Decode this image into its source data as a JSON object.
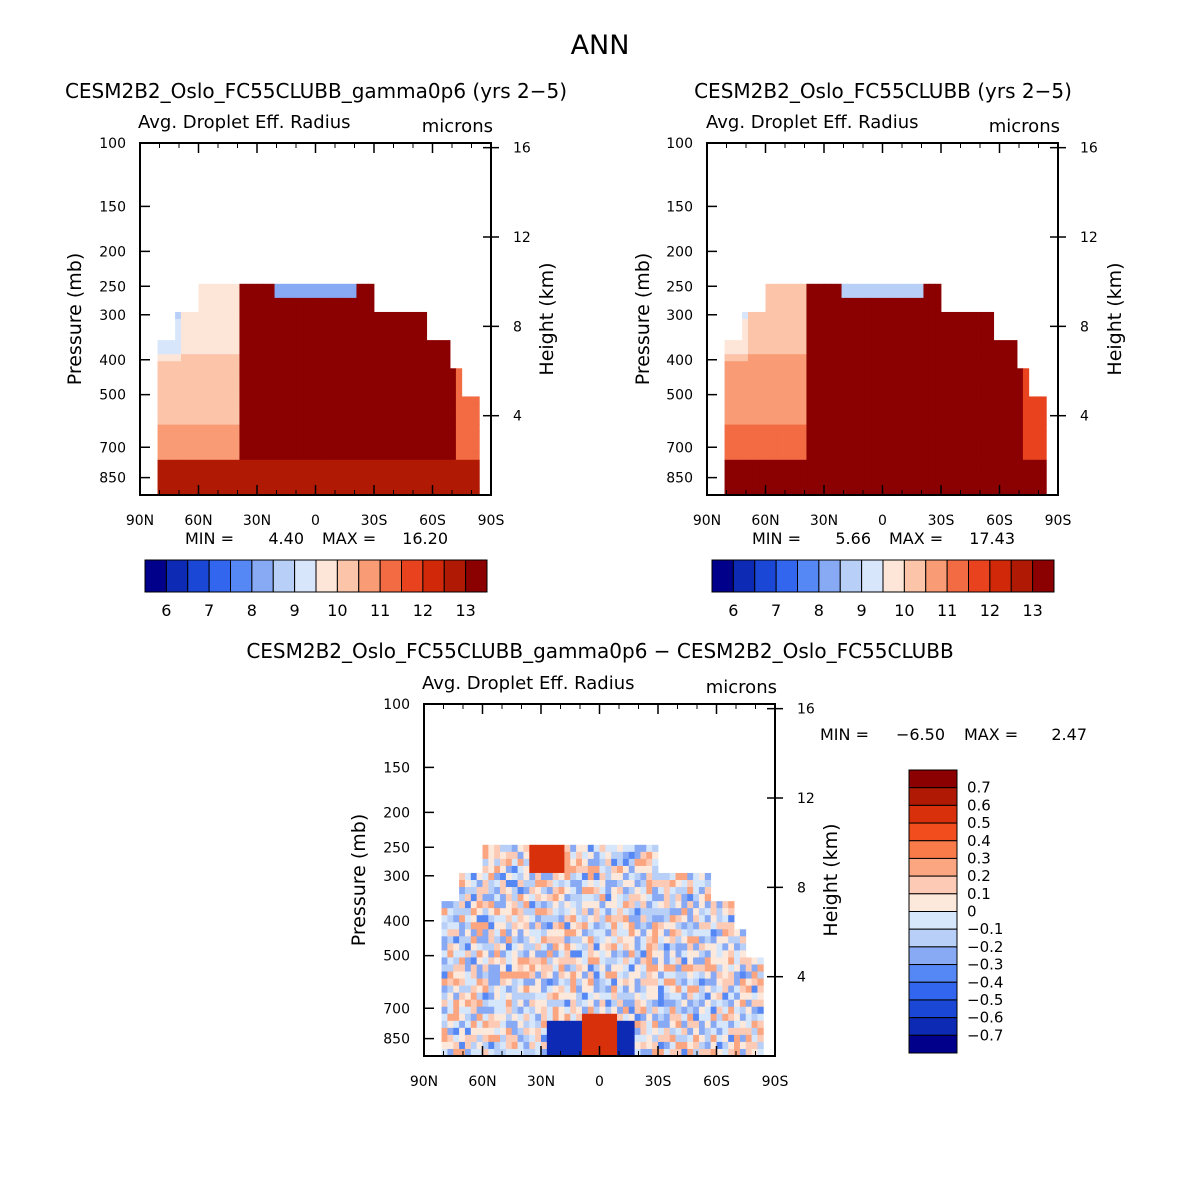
{
  "page_title": "ANN",
  "chart_data": [
    {
      "type": "heatmap",
      "title": "CESM2B2_Oslo_FC55CLUBB_gamma0p6 (yrs 2−5)",
      "subtitle": "Avg. Droplet Eff. Radius",
      "units": "microns",
      "ylabel": "Pressure (mb)",
      "ylabel_right": "Height (km)",
      "x_ticks": [
        "90N",
        "60N",
        "30N",
        "0",
        "30S",
        "60S",
        "90S"
      ],
      "y_ticks": [
        "100",
        "150",
        "200",
        "250",
        "300",
        "400",
        "500",
        "700",
        "850"
      ],
      "y_right_ticks": [
        "16",
        "12",
        "8",
        "4"
      ],
      "min_label": "MIN =",
      "min_value": "4.40",
      "max_label": "MAX =",
      "max_value": "16.20",
      "colorbar_labels": [
        "6",
        "7",
        "8",
        "9",
        "10",
        "11",
        "12",
        "13"
      ]
    },
    {
      "type": "heatmap",
      "title": "CESM2B2_Oslo_FC55CLUBB (yrs 2−5)",
      "subtitle": "Avg. Droplet Eff. Radius",
      "units": "microns",
      "ylabel": "Pressure (mb)",
      "ylabel_right": "Height (km)",
      "x_ticks": [
        "90N",
        "60N",
        "30N",
        "0",
        "30S",
        "60S",
        "90S"
      ],
      "y_ticks": [
        "100",
        "150",
        "200",
        "250",
        "300",
        "400",
        "500",
        "700",
        "850"
      ],
      "y_right_ticks": [
        "16",
        "12",
        "8",
        "4"
      ],
      "min_label": "MIN =",
      "min_value": "5.66",
      "max_label": "MAX =",
      "max_value": "17.43",
      "colorbar_labels": [
        "6",
        "7",
        "8",
        "9",
        "10",
        "11",
        "12",
        "13"
      ]
    },
    {
      "type": "heatmap",
      "title": "CESM2B2_Oslo_FC55CLUBB_gamma0p6 − CESM2B2_Oslo_FC55CLUBB",
      "subtitle": "Avg. Droplet Eff. Radius",
      "units": "microns",
      "ylabel": "Pressure (mb)",
      "ylabel_right": "Height (km)",
      "x_ticks": [
        "90N",
        "60N",
        "30N",
        "0",
        "30S",
        "60S",
        "90S"
      ],
      "y_ticks": [
        "100",
        "150",
        "200",
        "250",
        "300",
        "400",
        "500",
        "700",
        "850"
      ],
      "y_right_ticks": [
        "16",
        "12",
        "8",
        "4"
      ],
      "min_label": "MIN =",
      "min_value": "−6.50",
      "max_label": "MAX =",
      "max_value": "2.47",
      "colorbar_labels": [
        "0.7",
        "0.6",
        "0.5",
        "0.4",
        "0.3",
        "0.2",
        "0.1",
        "0",
        "−0.1",
        "−0.2",
        "−0.3",
        "−0.4",
        "−0.5",
        "−0.6",
        "−0.7"
      ]
    }
  ],
  "colors": {
    "abs_scale": [
      "#00008b",
      "#0d2ab5",
      "#1a47d6",
      "#3366ee",
      "#5588f5",
      "#88aaf5",
      "#b8cff7",
      "#d8e6fb",
      "#fde6d8",
      "#fcc4a9",
      "#f99b74",
      "#f26b43",
      "#e8431e",
      "#d02808",
      "#b01a04",
      "#8b0000"
    ],
    "diff_scale": [
      "#8b0000",
      "#b01a04",
      "#d9300c",
      "#f24d1d",
      "#f97b4a",
      "#fba581",
      "#fdcbb5",
      "#fde8dc",
      "#d6e6fb",
      "#b8cff7",
      "#88aaf5",
      "#5588f5",
      "#3366ee",
      "#1a47d6",
      "#0d2ab5",
      "#00008b"
    ]
  }
}
